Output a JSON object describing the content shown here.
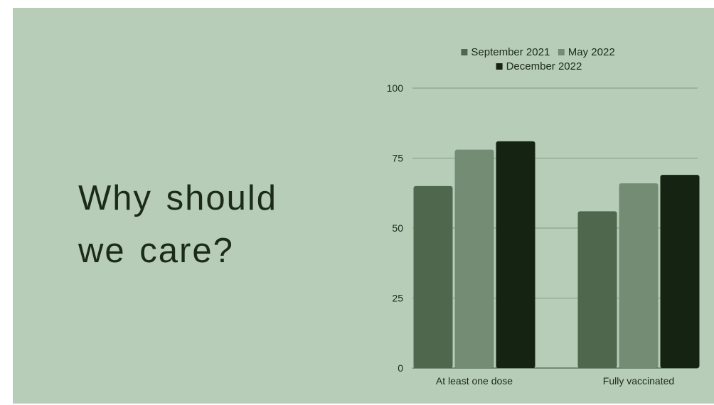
{
  "slide": {
    "title_line1": "Why should",
    "title_line2": "we care?"
  },
  "chart_data": {
    "type": "bar",
    "categories": [
      "At least one dose",
      "Fully vaccinated"
    ],
    "series": [
      {
        "name": "September 2021",
        "values": [
          65,
          56
        ],
        "color": "#4f674d"
      },
      {
        "name": "May 2022",
        "values": [
          78,
          66
        ],
        "color": "#748c73"
      },
      {
        "name": "December 2022",
        "values": [
          81,
          69
        ],
        "color": "#142312"
      }
    ],
    "y_ticks": [
      0,
      25,
      50,
      75,
      100
    ],
    "ylim": [
      0,
      100
    ],
    "grid": true,
    "legend_position": "top",
    "title": "",
    "xlabel": "",
    "ylabel": ""
  }
}
